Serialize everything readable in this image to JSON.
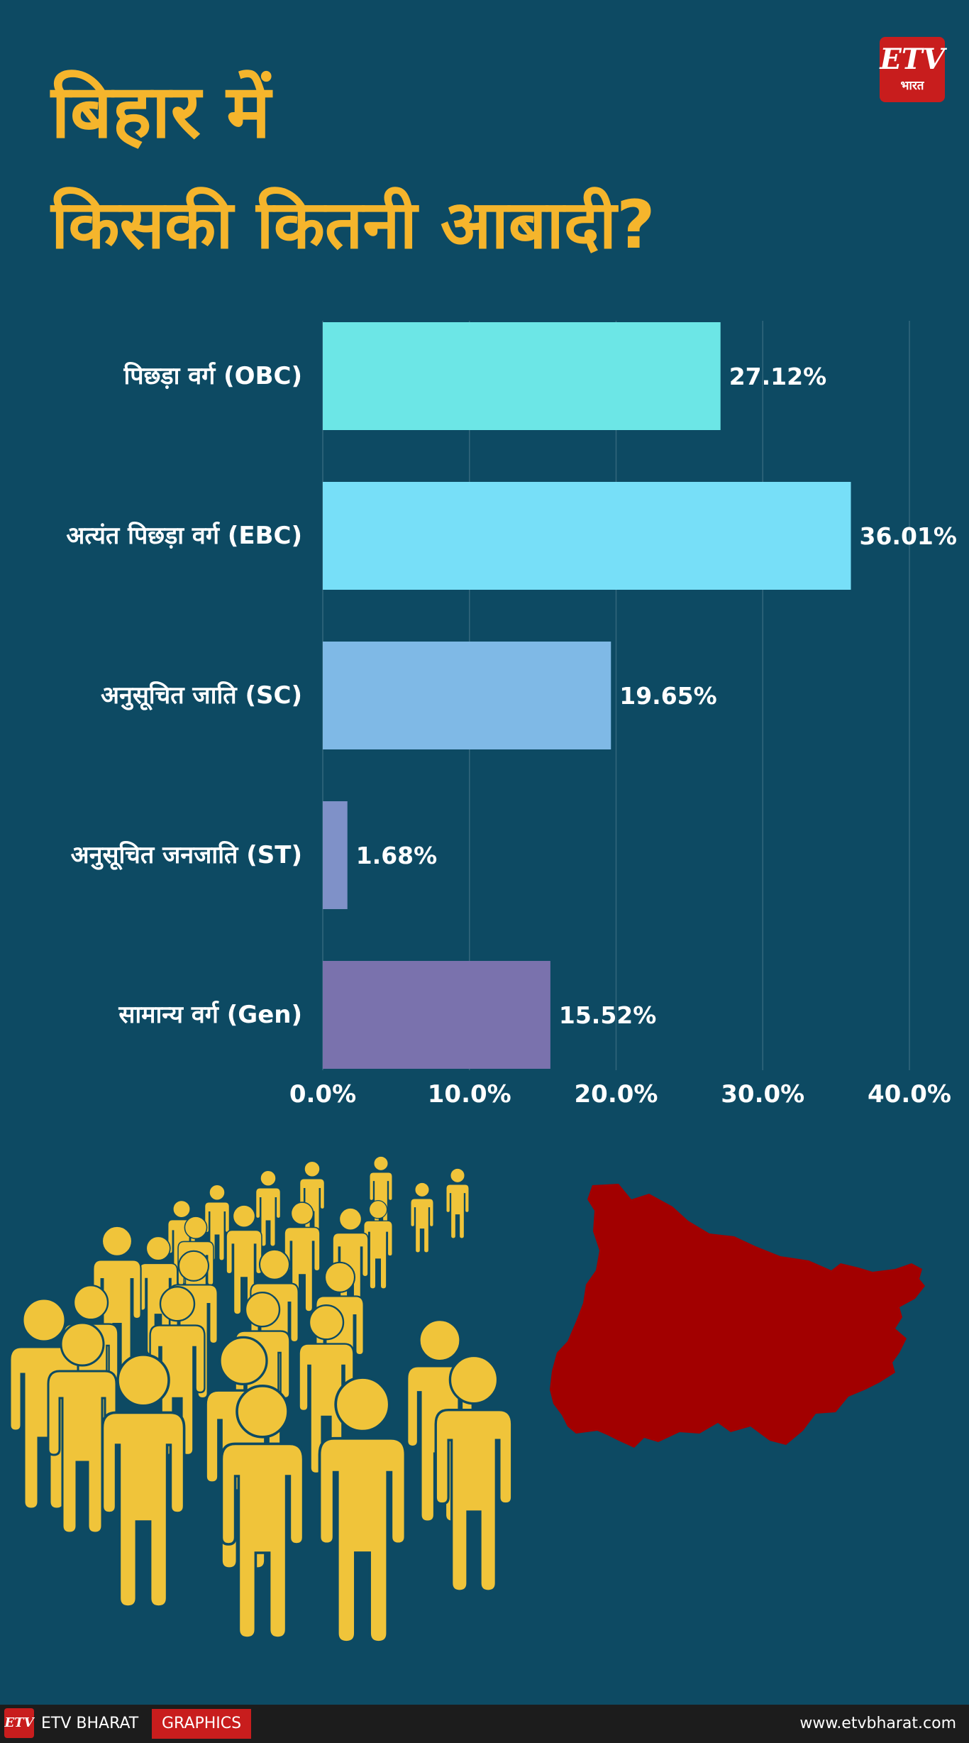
{
  "logo": {
    "mark": "ETV",
    "sub": "भारत"
  },
  "title_line1": "बिहार में",
  "title_line2": "किसकी कितनी आबादी?",
  "chart_data": {
    "type": "bar",
    "orientation": "horizontal",
    "categories": [
      "पिछड़ा वर्ग (OBC)",
      "अत्यंत पिछड़ा वर्ग (EBC)",
      "अनुसूचित जाति (SC)",
      "अनुसूचित जनजाति (ST)",
      "सामान्य वर्ग (Gen)"
    ],
    "values": [
      27.12,
      36.01,
      19.65,
      1.68,
      15.52
    ],
    "value_labels": [
      "27.12%",
      "36.01%",
      "19.65%",
      "1.68%",
      "15.52%"
    ],
    "bar_colors": [
      "#6ce6e6",
      "#77dff8",
      "#7fb9e6",
      "#7f91c8",
      "#7a72ad"
    ],
    "xlim": [
      0,
      40
    ],
    "xticks": [
      0,
      10,
      20,
      30,
      40
    ],
    "xtick_labels": [
      "0.0%",
      "10.0%",
      "20.0%",
      "30.0%",
      "40.0%"
    ],
    "grid": "vertical",
    "legend": "none"
  },
  "colors": {
    "background": "#0d4a63",
    "title": "#f5b52c",
    "people": "#f0c43a",
    "map": "#a20000",
    "brand_red": "#c81d1d"
  },
  "footer": {
    "brand": "ETV BHARAT",
    "graphics": "GRAPHICS",
    "site": "www.etvbharat.com",
    "logo_mark": "ETV"
  }
}
